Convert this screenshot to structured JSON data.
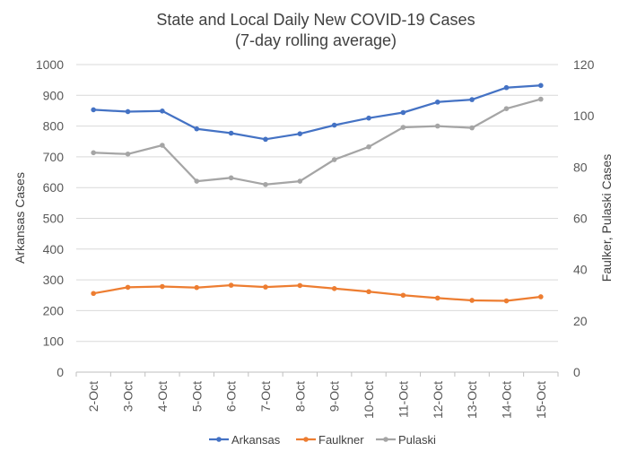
{
  "chart_data": {
    "type": "line",
    "title": "State and Local Daily New COVID-19 Cases",
    "subtitle": "(7-day rolling average)",
    "categories": [
      "2-Oct",
      "3-Oct",
      "4-Oct",
      "5-Oct",
      "6-Oct",
      "7-Oct",
      "8-Oct",
      "9-Oct",
      "10-Oct",
      "11-Oct",
      "12-Oct",
      "13-Oct",
      "14-Oct",
      "15-Oct"
    ],
    "ylabel": "Arkansas Cases",
    "y2label": "Faulker, Pulaski Cases",
    "ylim": [
      0,
      1000
    ],
    "y2lim": [
      0,
      120
    ],
    "yticks": [
      "0",
      "100",
      "200",
      "300",
      "400",
      "500",
      "600",
      "700",
      "800",
      "900",
      "1000"
    ],
    "y2ticks": [
      "0",
      "20",
      "40",
      "60",
      "80",
      "100",
      "120"
    ],
    "legend_position": "bottom",
    "series": [
      {
        "name": "Arkansas",
        "axis": "left",
        "color": "#4472C4",
        "values": [
          853,
          847,
          849,
          791,
          777,
          757,
          775,
          803,
          826,
          844,
          878,
          886,
          925,
          932
        ]
      },
      {
        "name": "Faulkner",
        "axis": "right",
        "color": "#ED7D31",
        "values": [
          30.7,
          33.1,
          33.4,
          33.0,
          33.9,
          33.2,
          33.8,
          32.6,
          31.4,
          30.0,
          28.9,
          28.0,
          27.8,
          29.4
        ]
      },
      {
        "name": "Pulaski",
        "axis": "right",
        "color": "#A5A5A5",
        "values": [
          85.6,
          85.1,
          88.5,
          74.5,
          75.8,
          73.2,
          74.5,
          82.9,
          87.9,
          95.5,
          96.0,
          95.3,
          102.8,
          106.5
        ]
      }
    ]
  }
}
